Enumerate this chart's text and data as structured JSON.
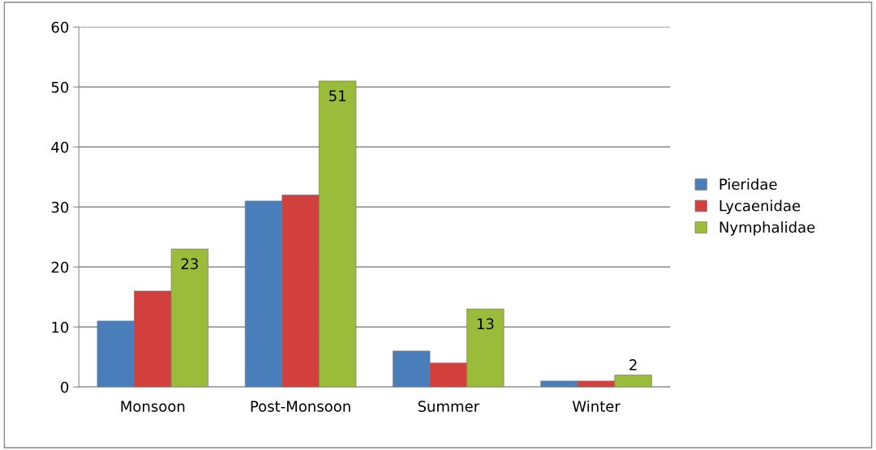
{
  "chart_data": {
    "type": "bar",
    "categories": [
      "Monsoon",
      "Post-Monsoon",
      "Summer",
      "Winter"
    ],
    "series": [
      {
        "name": "Pieridae",
        "color": "#4a7ebb",
        "values": [
          11,
          31,
          6,
          1
        ]
      },
      {
        "name": "Lycaenidae",
        "color": "#d2403d",
        "values": [
          16,
          32,
          4,
          1
        ]
      },
      {
        "name": "Nymphalidae",
        "color": "#9bbb3a",
        "values": [
          23,
          51,
          13,
          2
        ],
        "value_labels": [
          "23",
          "51",
          "13",
          "2"
        ]
      }
    ],
    "ylim": [
      0,
      60
    ],
    "yticks": [
      0,
      10,
      20,
      30,
      40,
      50,
      60
    ],
    "grid": "y",
    "legend": "right"
  }
}
